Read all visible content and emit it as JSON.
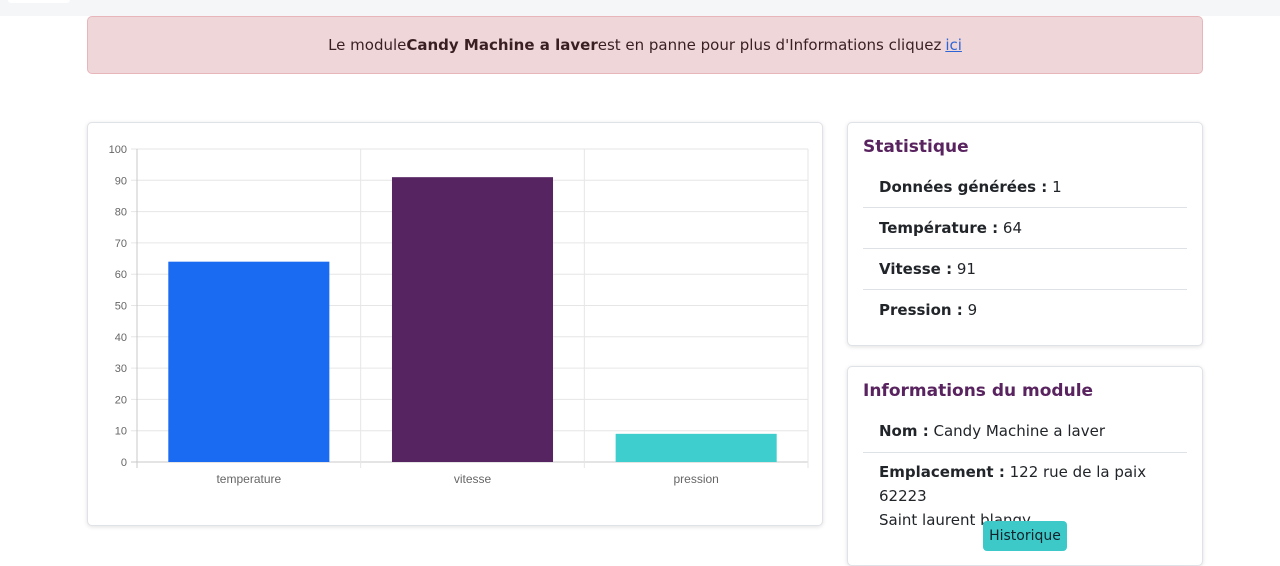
{
  "alert": {
    "prefix": "Le module",
    "module_name": "Candy Machine a laver",
    "suffix": "est en panne pour plus d'Informations cliquez",
    "link_label": "ici"
  },
  "statistics": {
    "title": "Statistique",
    "rows": [
      {
        "label": "Données générées :",
        "value": "1"
      },
      {
        "label": "Température :",
        "value": "64"
      },
      {
        "label": "Vitesse :",
        "value": "91"
      },
      {
        "label": "Pression :",
        "value": "9"
      }
    ]
  },
  "module_info": {
    "title": "Informations du module",
    "name_label": "Nom :",
    "name_value": "Candy Machine a laver",
    "location_label": "Emplacement :",
    "location_value_line1": "122 rue de la paix 62223",
    "location_value_line2": "Saint laurent blangy",
    "history_button": "Historique"
  },
  "chart_data": {
    "type": "bar",
    "categories": [
      "temperature",
      "vitesse",
      "pression"
    ],
    "values": [
      64,
      91,
      9
    ],
    "colors": [
      "#1a6af2",
      "#572462",
      "#3ecece"
    ],
    "ylim": [
      0,
      100
    ],
    "yticks": [
      0,
      10,
      20,
      30,
      40,
      50,
      60,
      70,
      80,
      90,
      100
    ],
    "grid": true,
    "title": "",
    "xlabel": "",
    "ylabel": ""
  }
}
